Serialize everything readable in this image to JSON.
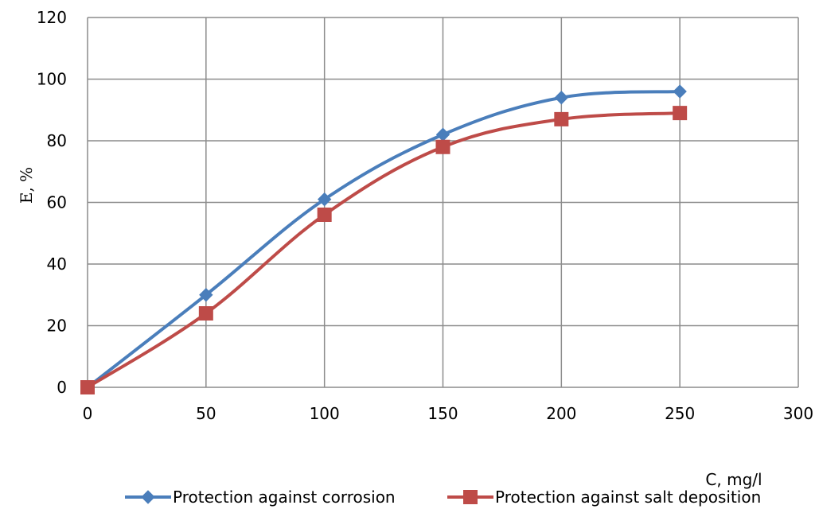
{
  "chart_data": {
    "type": "line",
    "title": "",
    "xlabel": "C, mg/l",
    "ylabel": "E, %",
    "xlim": [
      0,
      300
    ],
    "ylim": [
      0,
      120
    ],
    "x_ticks": [
      0,
      50,
      100,
      150,
      200,
      250,
      300
    ],
    "y_ticks": [
      0,
      20,
      40,
      60,
      80,
      100,
      120
    ],
    "x_tick_labels": [
      "0",
      "50",
      "100",
      "150",
      "200",
      "250",
      "300"
    ],
    "y_tick_labels": [
      "0",
      "20",
      "40",
      "60",
      "80",
      "100",
      "120"
    ],
    "grid": true,
    "smooth": true,
    "legend_position": "bottom",
    "series": [
      {
        "name": "Protection against corrosion",
        "color": "#4a7ebb",
        "marker": "diamond",
        "x": [
          0,
          50,
          100,
          150,
          200,
          250
        ],
        "y": [
          0,
          30,
          61,
          82,
          94,
          96
        ]
      },
      {
        "name": "Protection against salt deposition",
        "color": "#be4b48",
        "marker": "square",
        "x": [
          0,
          50,
          100,
          150,
          200,
          250
        ],
        "y": [
          0,
          24,
          56,
          78,
          87,
          89
        ]
      }
    ]
  }
}
